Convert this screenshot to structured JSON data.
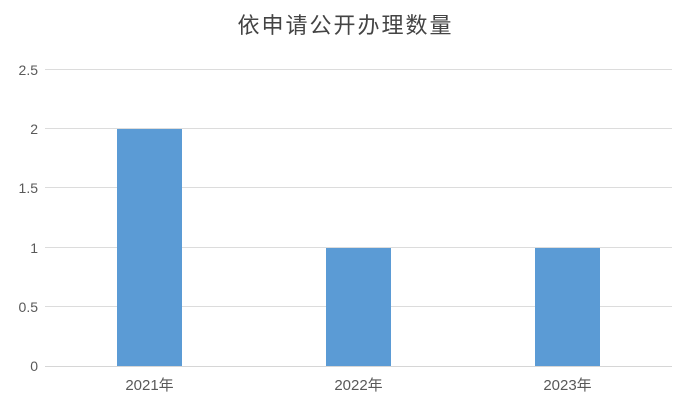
{
  "title": "依申请公开办理数量",
  "colors": {
    "bar": "#5B9BD5",
    "gridline": "#DCDCDC",
    "axis_line": "#D6D6D6",
    "tick_text": "#595959",
    "title_text": "#444444",
    "background": "#FFFFFF"
  },
  "chart_data": {
    "type": "bar",
    "title": "依申请公开办理数量",
    "categories": [
      "2021年",
      "2022年",
      "2023年"
    ],
    "values": [
      2,
      1,
      1
    ],
    "xlabel": "",
    "ylabel": "",
    "ylim": [
      0,
      2.5
    ],
    "ytick_step": 0.5,
    "ytick_labels": [
      "0",
      "0.5",
      "1",
      "1.5",
      "2",
      "2.5"
    ],
    "grid": true,
    "legend": false
  }
}
